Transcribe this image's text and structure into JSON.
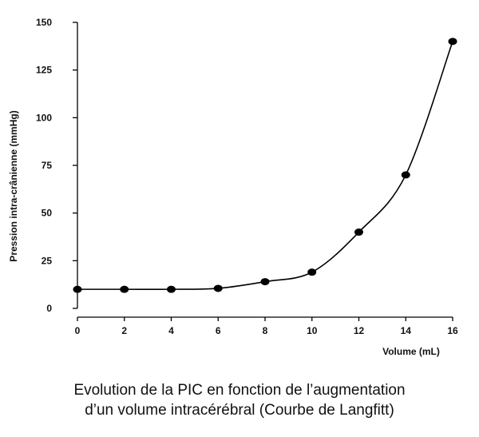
{
  "chart_data": {
    "type": "line",
    "title": "",
    "xlabel": "Volume (mL)",
    "ylabel": "Pression intra-crânienne (mmHg)",
    "xlim": [
      0,
      16
    ],
    "ylim": [
      0,
      150
    ],
    "x_ticks": [
      0,
      2,
      4,
      6,
      8,
      10,
      12,
      14,
      16
    ],
    "y_ticks": [
      0,
      25,
      50,
      75,
      100,
      125,
      150
    ],
    "grid": false,
    "series": [
      {
        "x": [
          0,
          2,
          4,
          6,
          8,
          10,
          12,
          14,
          16
        ],
        "values": [
          10,
          10,
          10,
          10.5,
          14,
          19,
          40,
          70,
          140
        ],
        "color": "#000000"
      }
    ]
  },
  "caption": {
    "line1": "Evolution de la PIC en fonction de l’augmentation",
    "line2": "d’un volume intracérébral (Courbe de Langfitt)"
  }
}
